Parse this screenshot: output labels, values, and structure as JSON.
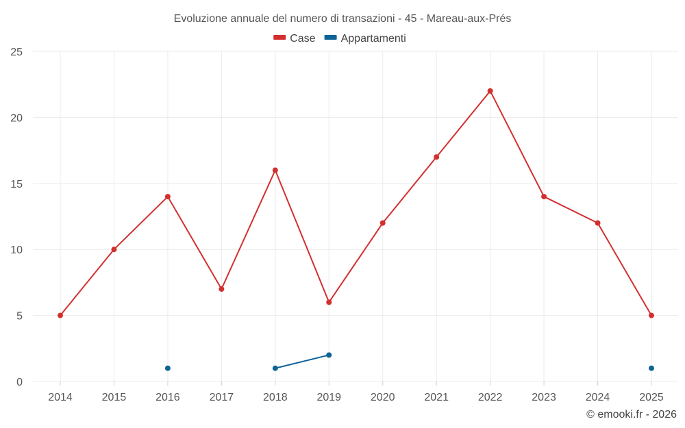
{
  "chart_data": {
    "type": "line",
    "title": "Evoluzione annuale del numero di transazioni - 45 - Mareau-aux-Prés",
    "categories": [
      "2014",
      "2015",
      "2016",
      "2017",
      "2018",
      "2019",
      "2020",
      "2021",
      "2022",
      "2023",
      "2024",
      "2025"
    ],
    "series": [
      {
        "name": "Case",
        "color": "#d32f2f",
        "values": [
          5,
          10,
          14,
          7,
          16,
          6,
          12,
          17,
          22,
          14,
          12,
          5
        ]
      },
      {
        "name": "Appartamenti",
        "color": "#0d6396",
        "values": [
          null,
          null,
          1,
          null,
          1,
          2,
          null,
          null,
          null,
          null,
          null,
          1
        ]
      }
    ],
    "yticks": [
      "0",
      "5",
      "10",
      "15",
      "20",
      "25"
    ],
    "ylim": [
      0,
      25
    ],
    "xlabel": "",
    "ylabel": "",
    "grid": true,
    "legend_position": "top-center",
    "credit": "© emooki.fr - 2026"
  }
}
